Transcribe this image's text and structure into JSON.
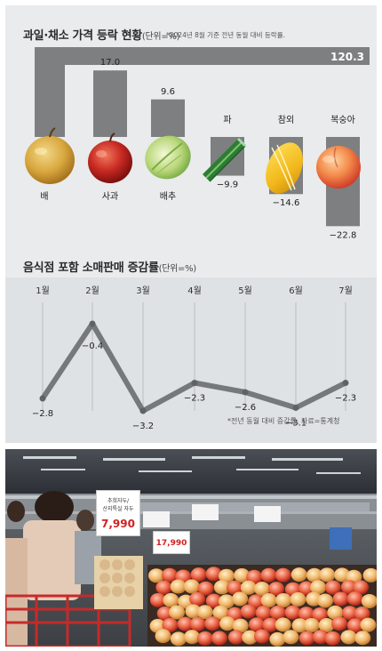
{
  "section1": {
    "title": "과일·채소 가격 등락 현황",
    "unit": "(단위=%)",
    "note": "*2024년 8월 기준 전년 동월 대비 등락률."
  },
  "section2": {
    "title": "음식점 포함 소매판매 증감률",
    "unit": "(단위=%)",
    "note": "*전년 동월 대비 증감률, 자료=통계청"
  },
  "photo": {
    "price_big": "7,990",
    "price_small": "17,990",
    "tag_line1": "추희자두/",
    "tag_line2": "산지특실 자두"
  },
  "chart_data": [
    {
      "type": "bar",
      "title": "과일·채소 가격 등락 현황",
      "unit": "(단위=%)",
      "categories": [
        "배",
        "사과",
        "배추",
        "파",
        "참외",
        "복숭아"
      ],
      "values": [
        120.3,
        17.0,
        9.6,
        -9.9,
        -14.6,
        -22.8
      ],
      "value_labels": [
        "120.3",
        "17.0",
        "9.6",
        "−9.9",
        "−14.6",
        "−22.8"
      ]
    },
    {
      "type": "line",
      "title": "음식점 포함 소매판매 증감률",
      "unit": "(단위=%)",
      "x": [
        "1월",
        "2월",
        "3월",
        "4월",
        "5월",
        "6월",
        "7월"
      ],
      "values": [
        -2.8,
        -0.4,
        -3.2,
        -2.3,
        -2.6,
        -3.1,
        -2.3
      ],
      "value_labels": [
        "−2.8",
        "−0.4",
        "−3.2",
        "−2.3",
        "−2.6",
        "−3.1",
        "−2.3"
      ]
    }
  ],
  "colors": {
    "bar": "#7d7f81",
    "line": "#76797c",
    "background": "#e9ebec",
    "panel": "#dfe2e4"
  }
}
